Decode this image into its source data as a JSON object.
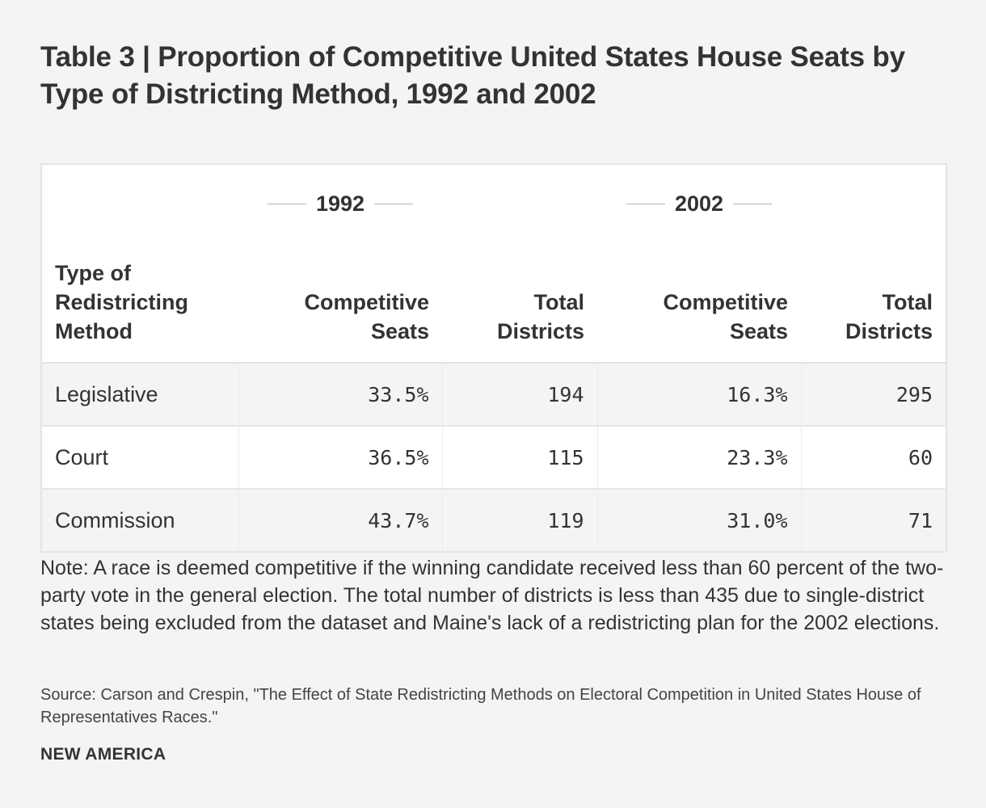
{
  "title": "Table 3 | Proportion of Competitive United States House Seats by Type of Districting Method, 1992 and 2002",
  "chart_data": {
    "type": "table",
    "groups": [
      "1992",
      "2002"
    ],
    "columns": [
      "Type of Redistricting Method",
      "Competitive Seats",
      "Total Districts",
      "Competitive Seats",
      "Total Districts"
    ],
    "rows": [
      {
        "method": "Legislative",
        "cs_1992": "33.5%",
        "td_1992": "194",
        "cs_2002": "16.3%",
        "td_2002": "295"
      },
      {
        "method": "Court",
        "cs_1992": "36.5%",
        "td_1992": "115",
        "cs_2002": "23.3%",
        "td_2002": "60"
      },
      {
        "method": "Commission",
        "cs_1992": "43.7%",
        "td_1992": "119",
        "cs_2002": "31.0%",
        "td_2002": "71"
      }
    ]
  },
  "note": "Note: A race is deemed competitive if the winning candidate received less than 60 percent of the two-party vote in the general election. The total number of districts is less than 435 due to single-district states being excluded from the dataset and Maine's lack of a redistricting plan for the 2002 elections.",
  "source": "Source: Carson and Crespin, \"The Effect of State Redistricting Methods on Electoral Competition in United States House of Representatives Races.\"",
  "brand": "NEW AMERICA",
  "colors": {
    "background": "#f4f4f4",
    "table_bg": "#ffffff",
    "shaded_row": "#f4f4f4",
    "text": "#333333"
  }
}
